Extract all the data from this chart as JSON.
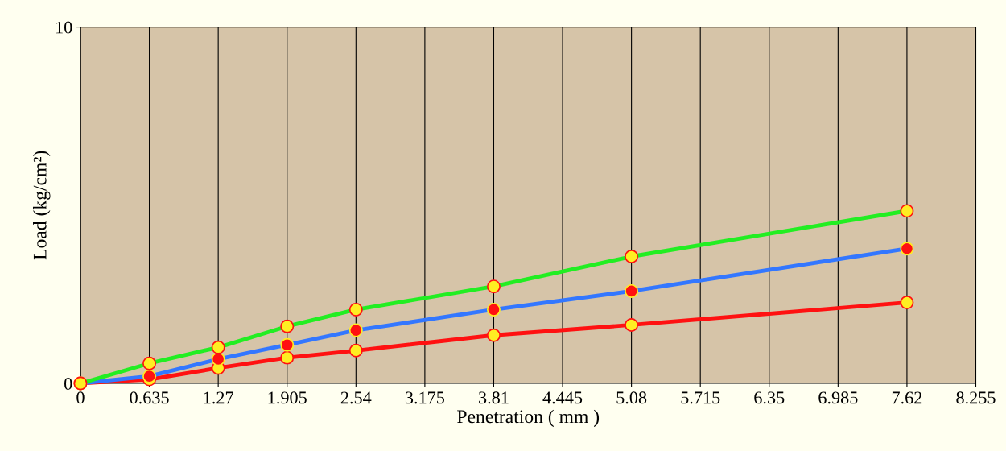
{
  "chart_data": {
    "type": "line",
    "xlabel": "Penetration ( mm )",
    "ylabel": "Load (kg/cm²)",
    "x": [
      0,
      0.635,
      1.27,
      1.905,
      2.54,
      3.81,
      5.08,
      7.62
    ],
    "series": [
      {
        "color": "#22ee22",
        "values": [
          0,
          0.56,
          1.01,
          1.6,
          2.07,
          2.72,
          3.56,
          4.84
        ]
      },
      {
        "color": "#3377ff",
        "values": [
          0,
          0.2,
          0.68,
          1.08,
          1.49,
          2.07,
          2.59,
          3.78
        ]
      },
      {
        "color": "#ff1111",
        "values": [
          0,
          0.11,
          0.43,
          0.72,
          0.92,
          1.35,
          1.64,
          2.27
        ]
      }
    ],
    "xlim": [
      0,
      8.255
    ],
    "xticks": [
      0,
      0.635,
      1.27,
      1.905,
      2.54,
      3.175,
      3.81,
      4.445,
      5.08,
      5.715,
      6.35,
      6.985,
      7.62,
      8.255
    ],
    "ylim": [
      0,
      10
    ],
    "yticks": [
      0,
      10
    ],
    "grid": "x",
    "marker": "circle",
    "line_style": "solid"
  }
}
